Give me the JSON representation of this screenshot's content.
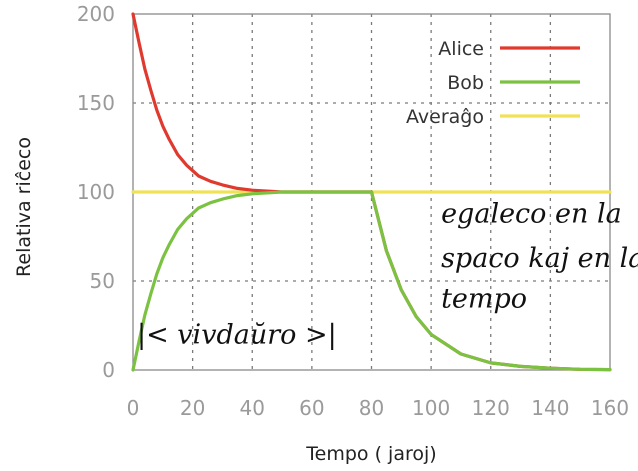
{
  "chart_data": {
    "type": "line",
    "title": "",
    "xlabel": "Tempo ( jaroj)",
    "ylabel": "Relativa riĉeco",
    "xlim": [
      0,
      160
    ],
    "ylim": [
      0,
      200
    ],
    "xticks": [
      0,
      20,
      40,
      60,
      80,
      100,
      120,
      140,
      160
    ],
    "yticks": [
      0,
      50,
      100,
      150,
      200
    ],
    "grid": true,
    "legend_position": "top-right",
    "series": [
      {
        "name": "Alice",
        "color": "#e03a2f",
        "x": [
          0,
          2,
          4,
          6,
          8,
          10,
          12,
          15,
          18,
          22,
          26,
          30,
          35,
          40,
          50,
          60,
          70,
          80,
          85,
          90,
          95,
          100,
          110,
          120,
          130,
          140,
          150,
          160
        ],
        "y": [
          200,
          184,
          169,
          157,
          146,
          137,
          130,
          121,
          115,
          109,
          106,
          104,
          102,
          101,
          100,
          100,
          100,
          100,
          67,
          45,
          30,
          20,
          9,
          4,
          2,
          1,
          0.4,
          0.2
        ]
      },
      {
        "name": "Bob",
        "color": "#7cc242",
        "x": [
          0,
          2,
          4,
          6,
          8,
          10,
          12,
          15,
          18,
          22,
          26,
          30,
          35,
          40,
          50,
          60,
          70,
          80,
          85,
          90,
          95,
          100,
          110,
          120,
          130,
          140,
          150,
          160
        ],
        "y": [
          0,
          16,
          31,
          43,
          54,
          63,
          70,
          79,
          85,
          91,
          94,
          96,
          98,
          99,
          100,
          100,
          100,
          100,
          67,
          45,
          30,
          20,
          9,
          4,
          2,
          1,
          0.4,
          0.2
        ]
      },
      {
        "name": "Averaĝo",
        "color": "#f0e257",
        "x": [
          0,
          160
        ],
        "y": [
          100,
          100
        ]
      }
    ],
    "annotations": [
      {
        "text": "egaleco en la",
        "x": 102,
        "y": 83
      },
      {
        "text": "spaco kaj en la",
        "x": 102,
        "y": 58
      },
      {
        "text": "tempo",
        "x": 102,
        "y": 35
      },
      {
        "text": "|<   vivdaŭro   >|",
        "x": 0,
        "y": 15
      }
    ]
  }
}
